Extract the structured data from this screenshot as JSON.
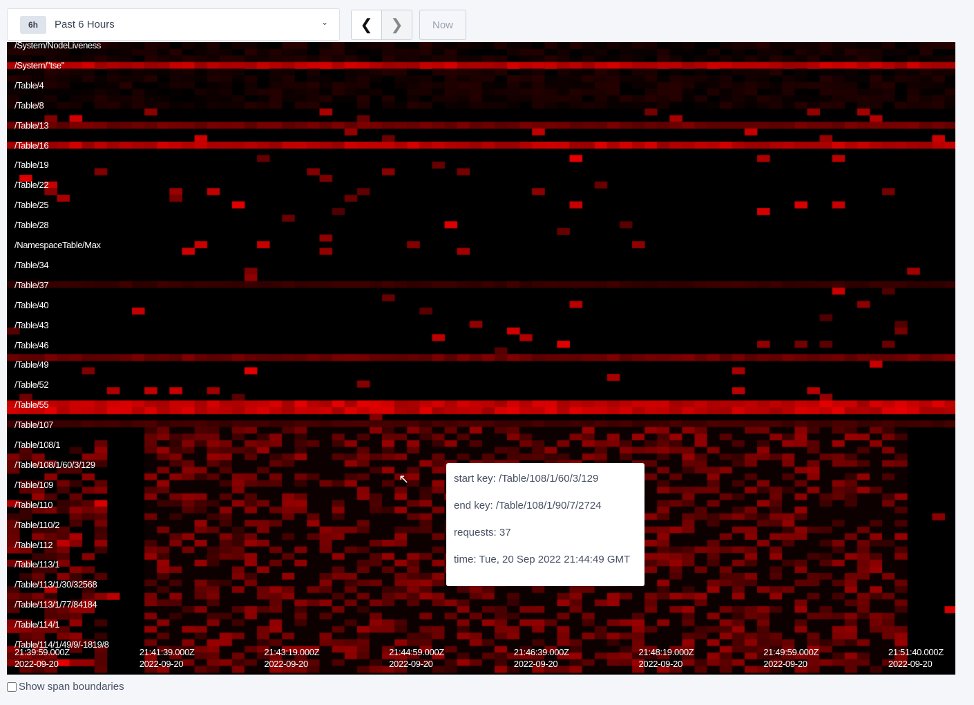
{
  "time_range": {
    "badge": "6h",
    "label": "Past 6 Hours"
  },
  "nav": {
    "prev_icon": "chevron-left-icon",
    "next_icon": "chevron-right-icon",
    "now_label": "Now"
  },
  "keys": [
    "/System/NodeLiveness",
    "/System/\"tse\"",
    "/Table/4",
    "/Table/8",
    "/Table/13",
    "/Table/16",
    "/Table/19",
    "/Table/22",
    "/Table/25",
    "/Table/28",
    "/NamespaceTable/Max",
    "/Table/34",
    "/Table/37",
    "/Table/40",
    "/Table/43",
    "/Table/46",
    "/Table/49",
    "/Table/52",
    "/Table/55",
    "/Table/107",
    "/Table/108/1",
    "/Table/108/1/60/3/129",
    "/Table/109",
    "/Table/110",
    "/Table/110/2",
    "/Table/112",
    "/Table/113/1",
    "/Table/113/1/30/32568",
    "/Table/113/1/77/84184",
    "/Table/114/1",
    "/Table/114/1/49/9/-1819/8"
  ],
  "time_labels": [
    {
      "time": "21:39:59.000Z",
      "date": "2022-09-20"
    },
    {
      "time": "21:41:39.000Z",
      "date": "2022-09-20"
    },
    {
      "time": "21:43:19.000Z",
      "date": "2022-09-20"
    },
    {
      "time": "21:44:59.000Z",
      "date": "2022-09-20"
    },
    {
      "time": "21:46:39.000Z",
      "date": "2022-09-20"
    },
    {
      "time": "21:48:19.000Z",
      "date": "2022-09-20"
    },
    {
      "time": "21:49:59.000Z",
      "date": "2022-09-20"
    },
    {
      "time": "21:51:40.000Z",
      "date": "2022-09-20"
    }
  ],
  "tooltip": {
    "start_key": "start key: /Table/108/1/60/3/129",
    "end_key": "end key: /Table/108/1/90/7/2724",
    "requests": "requests: 37",
    "time": "time: Tue, 20 Sep 2022 21:44:49 GMT"
  },
  "show_span_boundaries": {
    "label": "Show span boundaries",
    "checked": false
  },
  "colors": {
    "heat": "#ff0000",
    "background": "#000000"
  }
}
